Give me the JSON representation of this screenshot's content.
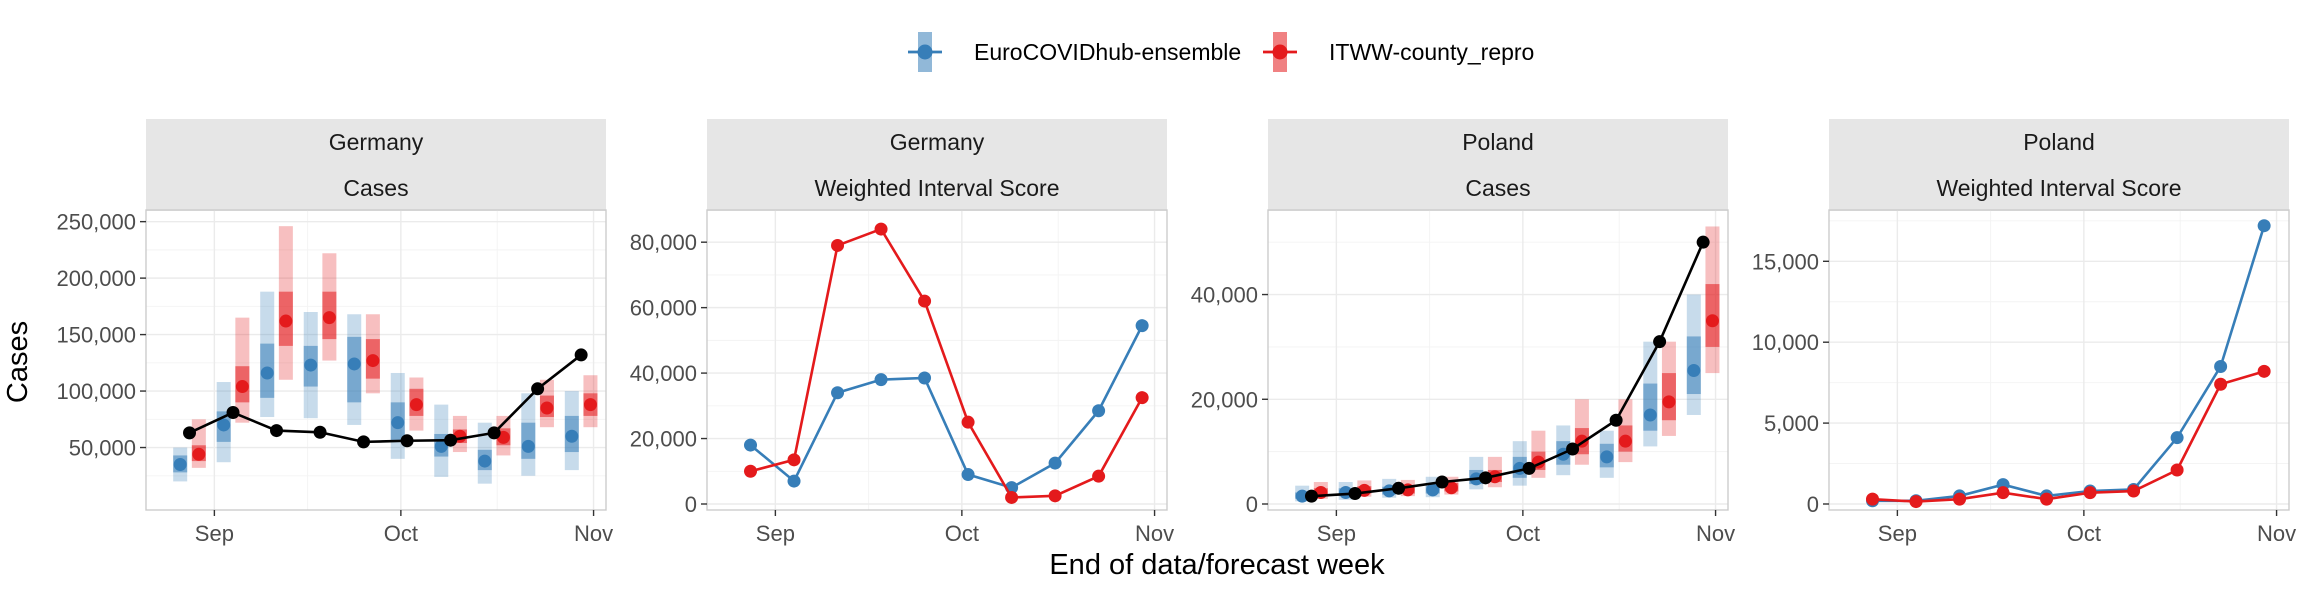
{
  "legend": {
    "items": [
      {
        "name": "EuroCOVIDhub-ensemble",
        "color": "#377eb8"
      },
      {
        "name": "ITWW-county_repro",
        "color": "#e41a1c"
      }
    ],
    "position": "top"
  },
  "axes": {
    "xlabel": "End of data/forecast week",
    "ylabel": "Cases"
  },
  "colors": {
    "observed": "#000000",
    "ensemble": "#377eb8",
    "repro": "#e41a1c",
    "strip": "#e6e6e6"
  },
  "chart_data": [
    {
      "type": "line",
      "location": "Germany",
      "target": "Cases",
      "x_ticks": [
        "Sep",
        "Oct",
        "Nov"
      ],
      "x_tick_dates": [
        "2021-09-01",
        "2021-10-01",
        "2021-11-01"
      ],
      "y_ticks": [
        "50,000",
        "100,000",
        "150,000",
        "200,000",
        "250,000"
      ],
      "y_tick_values": [
        50000,
        100000,
        150000,
        200000,
        250000
      ],
      "ylim": [
        0,
        255000
      ],
      "weeks": [
        "2021-08-28",
        "2021-09-04",
        "2021-09-11",
        "2021-09-18",
        "2021-09-25",
        "2021-10-02",
        "2021-10-09",
        "2021-10-16",
        "2021-10-23",
        "2021-10-30"
      ],
      "observed": [
        63000,
        81000,
        65000,
        63500,
        55000,
        56000,
        56500,
        63000,
        102000,
        132000
      ],
      "series": [
        {
          "name": "EuroCOVIDhub-ensemble",
          "median": [
            35000,
            70000,
            116000,
            123000,
            124000,
            72000,
            51000,
            38000,
            51000,
            60000
          ],
          "inner": [
            [
              28000,
              43000
            ],
            [
              55000,
              82000
            ],
            [
              94000,
              142000
            ],
            [
              104000,
              140000
            ],
            [
              90000,
              148000
            ],
            [
              55000,
              90000
            ],
            [
              42000,
              62000
            ],
            [
              30000,
              48000
            ],
            [
              40000,
              72000
            ],
            [
              46000,
              78000
            ]
          ],
          "outer": [
            [
              20000,
              50000
            ],
            [
              37000,
              108000
            ],
            [
              77000,
              188000
            ],
            [
              76000,
              170000
            ],
            [
              70000,
              168000
            ],
            [
              40000,
              116000
            ],
            [
              24000,
              88000
            ],
            [
              18000,
              72000
            ],
            [
              25000,
              98000
            ],
            [
              30000,
              100000
            ]
          ]
        },
        {
          "name": "ITWW-county_repro",
          "median": [
            44000,
            104000,
            162000,
            165000,
            127000,
            88000,
            60000,
            59000,
            85000,
            88000
          ],
          "inner": [
            [
              38000,
              52000
            ],
            [
              90000,
              122000
            ],
            [
              140000,
              188000
            ],
            [
              146000,
              188000
            ],
            [
              111000,
              146000
            ],
            [
              78000,
              102000
            ],
            [
              54000,
              66000
            ],
            [
              52000,
              67000
            ],
            [
              77000,
              96000
            ],
            [
              78000,
              98000
            ]
          ],
          "outer": [
            [
              32000,
              75000
            ],
            [
              72000,
              165000
            ],
            [
              110000,
              246000
            ],
            [
              127000,
              222000
            ],
            [
              98000,
              168000
            ],
            [
              65000,
              112000
            ],
            [
              46000,
              78000
            ],
            [
              43000,
              78000
            ],
            [
              68000,
              110000
            ],
            [
              68000,
              114000
            ]
          ]
        }
      ]
    },
    {
      "type": "line",
      "location": "Germany",
      "target": "Weighted Interval Score",
      "x_ticks": [
        "Sep",
        "Oct",
        "Nov"
      ],
      "x_tick_dates": [
        "2021-09-01",
        "2021-10-01",
        "2021-11-01"
      ],
      "y_ticks": [
        "0",
        "20,000",
        "40,000",
        "60,000",
        "80,000"
      ],
      "y_tick_values": [
        0,
        20000,
        40000,
        60000,
        80000
      ],
      "ylim": [
        0,
        88000
      ],
      "weeks": [
        "2021-08-28",
        "2021-09-04",
        "2021-09-11",
        "2021-09-18",
        "2021-09-25",
        "2021-10-02",
        "2021-10-09",
        "2021-10-16",
        "2021-10-23",
        "2021-10-30"
      ],
      "series": [
        {
          "name": "EuroCOVIDhub-ensemble",
          "values": [
            18000,
            7000,
            34000,
            38000,
            38500,
            9000,
            5000,
            12500,
            28500,
            54500
          ]
        },
        {
          "name": "ITWW-county_repro",
          "values": [
            10000,
            13500,
            79000,
            84000,
            62000,
            25000,
            2000,
            2500,
            8500,
            32500
          ]
        }
      ]
    },
    {
      "type": "line",
      "location": "Poland",
      "target": "Cases",
      "x_ticks": [
        "Sep",
        "Oct",
        "Nov"
      ],
      "x_tick_dates": [
        "2021-09-01",
        "2021-10-01",
        "2021-11-01"
      ],
      "y_ticks": [
        "0",
        "20,000",
        "40,000"
      ],
      "y_tick_values": [
        0,
        20000,
        40000
      ],
      "ylim": [
        0,
        55000
      ],
      "weeks": [
        "2021-08-28",
        "2021-09-04",
        "2021-09-11",
        "2021-09-18",
        "2021-09-25",
        "2021-10-02",
        "2021-10-09",
        "2021-10-16",
        "2021-10-23",
        "2021-10-30"
      ],
      "observed": [
        1500,
        2000,
        3000,
        4200,
        5000,
        6800,
        10500,
        16000,
        31000,
        50000
      ],
      "series": [
        {
          "name": "EuroCOVIDhub-ensemble",
          "median": [
            1500,
            2200,
            2500,
            2700,
            4800,
            6800,
            9500,
            9000,
            17000,
            25500
          ],
          "inner": [
            [
              1000,
              2200
            ],
            [
              1500,
              3000
            ],
            [
              1800,
              3300
            ],
            [
              2000,
              3500
            ],
            [
              3800,
              6500
            ],
            [
              5000,
              9000
            ],
            [
              7500,
              12000
            ],
            [
              7000,
              11500
            ],
            [
              14000,
              23000
            ],
            [
              21000,
              32000
            ]
          ],
          "outer": [
            [
              500,
              3500
            ],
            [
              800,
              4200
            ],
            [
              1200,
              4800
            ],
            [
              1300,
              5200
            ],
            [
              2800,
              9000
            ],
            [
              3500,
              12000
            ],
            [
              5500,
              15000
            ],
            [
              5000,
              14000
            ],
            [
              11000,
              31000
            ],
            [
              17000,
              40000
            ]
          ]
        },
        {
          "name": "ITWW-county_repro",
          "median": [
            2200,
            2600,
            2700,
            3100,
            5200,
            8000,
            12000,
            12000,
            19500,
            35000
          ],
          "inner": [
            [
              1600,
              3000
            ],
            [
              2000,
              3400
            ],
            [
              2000,
              3500
            ],
            [
              2400,
              4000
            ],
            [
              4200,
              6500
            ],
            [
              6500,
              10000
            ],
            [
              9500,
              14500
            ],
            [
              10000,
              15000
            ],
            [
              16000,
              25000
            ],
            [
              30000,
              42000
            ]
          ],
          "outer": [
            [
              1000,
              4200
            ],
            [
              1400,
              4500
            ],
            [
              1500,
              4600
            ],
            [
              1800,
              5200
            ],
            [
              3200,
              9000
            ],
            [
              5000,
              14000
            ],
            [
              7500,
              20000
            ],
            [
              8000,
              20000
            ],
            [
              13000,
              31000
            ],
            [
              25000,
              53000
            ]
          ]
        }
      ]
    },
    {
      "type": "line",
      "location": "Poland",
      "target": "Weighted Interval Score",
      "x_ticks": [
        "Sep",
        "Oct",
        "Nov"
      ],
      "x_tick_dates": [
        "2021-09-01",
        "2021-10-01",
        "2021-11-01"
      ],
      "y_ticks": [
        "0",
        "5,000",
        "10,000",
        "15,000"
      ],
      "y_tick_values": [
        0,
        5000,
        10000,
        15000
      ],
      "ylim": [
        0,
        17800
      ],
      "weeks": [
        "2021-08-28",
        "2021-09-04",
        "2021-09-11",
        "2021-09-18",
        "2021-09-25",
        "2021-10-02",
        "2021-10-09",
        "2021-10-16",
        "2021-10-23",
        "2021-10-30"
      ],
      "series": [
        {
          "name": "EuroCOVIDhub-ensemble",
          "values": [
            200,
            200,
            500,
            1200,
            500,
            800,
            900,
            4100,
            8500,
            17200
          ]
        },
        {
          "name": "ITWW-county_repro",
          "values": [
            300,
            150,
            300,
            700,
            300,
            700,
            800,
            2100,
            7400,
            8200
          ]
        }
      ]
    }
  ]
}
